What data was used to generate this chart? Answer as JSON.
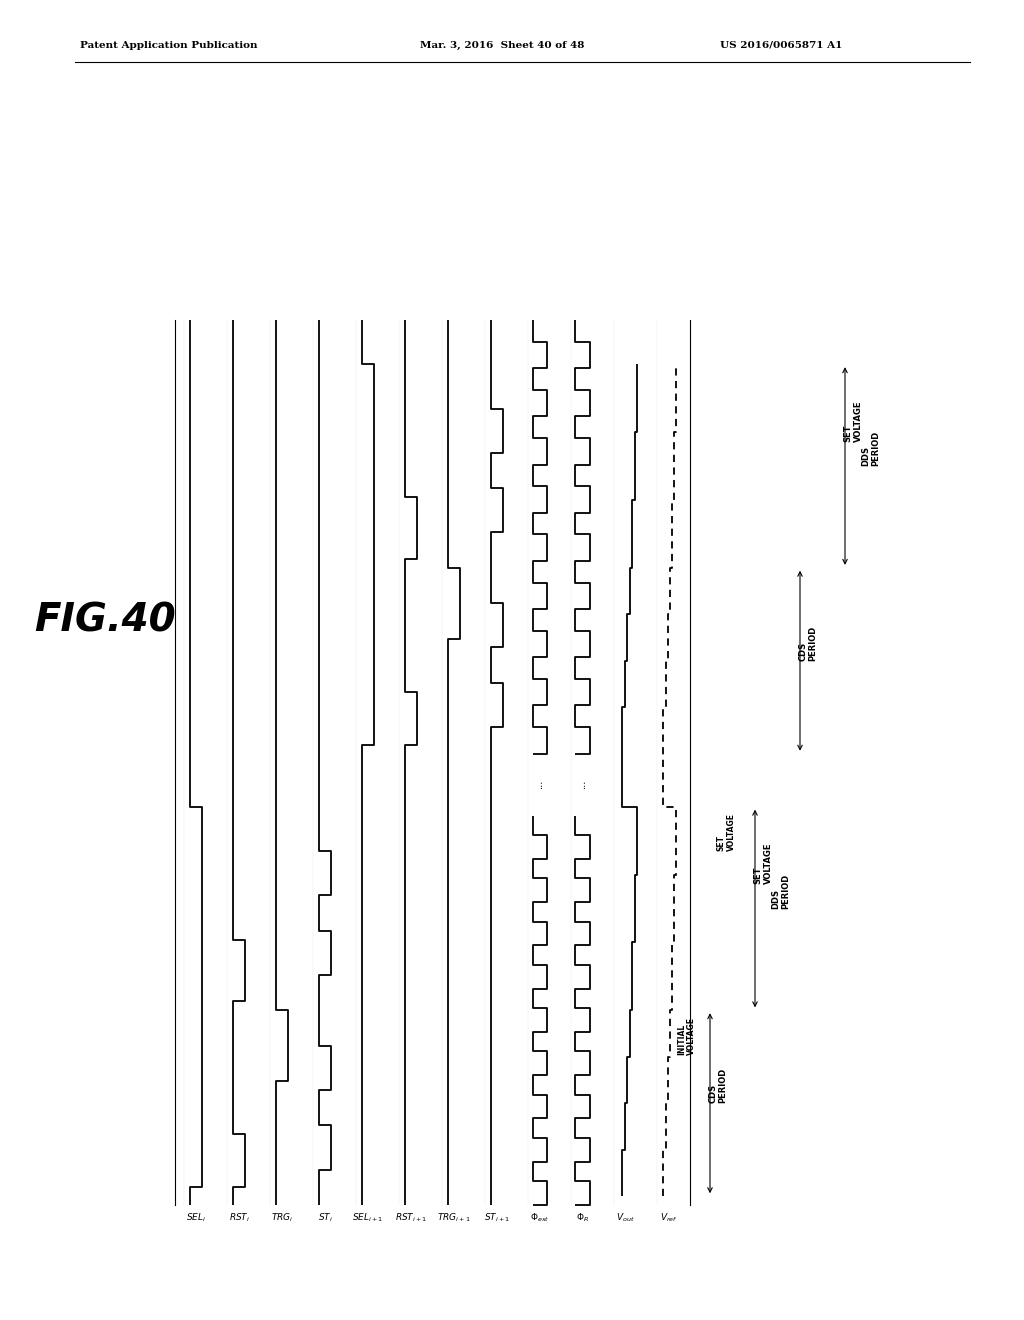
{
  "header_left": "Patent Application Publication",
  "header_mid": "Mar. 3, 2016  Sheet 40 of 48",
  "header_right": "US 2016/0065871 A1",
  "bg_color": "#ffffff",
  "fig_label": "FIG.40"
}
